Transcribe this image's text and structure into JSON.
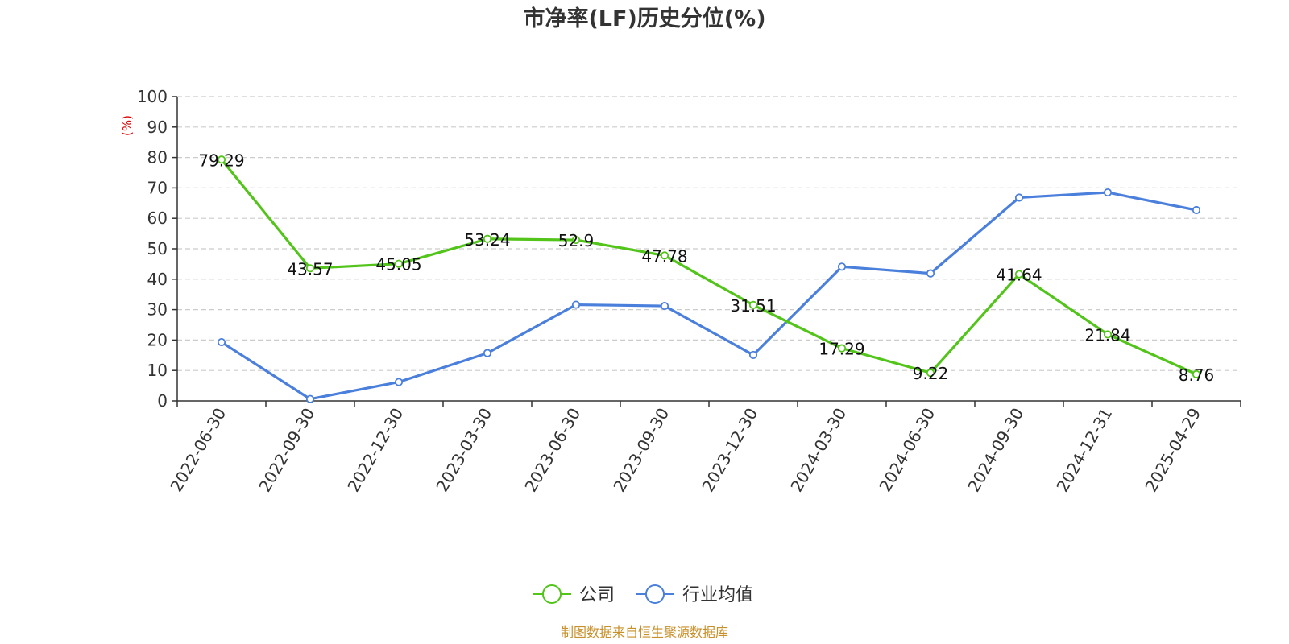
{
  "chart_data": {
    "type": "line",
    "title": "市净率(LF)历史分位(%)",
    "ylabel": "(%)",
    "categories": [
      "2022-06-30",
      "2022-09-30",
      "2022-12-30",
      "2023-03-30",
      "2023-06-30",
      "2023-09-30",
      "2023-12-30",
      "2024-03-30",
      "2024-06-30",
      "2024-09-30",
      "2024-12-31",
      "2025-04-29"
    ],
    "ylim": [
      0,
      100
    ],
    "yticks": [
      0,
      10,
      20,
      30,
      40,
      50,
      60,
      70,
      80,
      90,
      100
    ],
    "grid": "horizontal-dashed",
    "legend_position": "bottom-center",
    "series": [
      {
        "name": "公司",
        "color": "#52c41a",
        "values": [
          79.29,
          43.57,
          45.05,
          53.24,
          52.9,
          47.78,
          31.51,
          17.29,
          9.22,
          41.64,
          21.84,
          8.76
        ],
        "labels": [
          "79.29",
          "43.57",
          "45.05",
          "53.24",
          "52.9",
          "47.78",
          "31.51",
          "17.29",
          "9.22",
          "41.64",
          "21.84",
          "8.76"
        ]
      },
      {
        "name": "行业均值",
        "color": "#4a7fdc",
        "values": [
          19.3,
          0.6,
          6.2,
          15.7,
          31.6,
          31.2,
          15.1,
          44.1,
          41.9,
          66.8,
          68.5,
          62.7
        ]
      }
    ]
  },
  "footer": {
    "source": "制图数据来自恒生聚源数据库"
  }
}
